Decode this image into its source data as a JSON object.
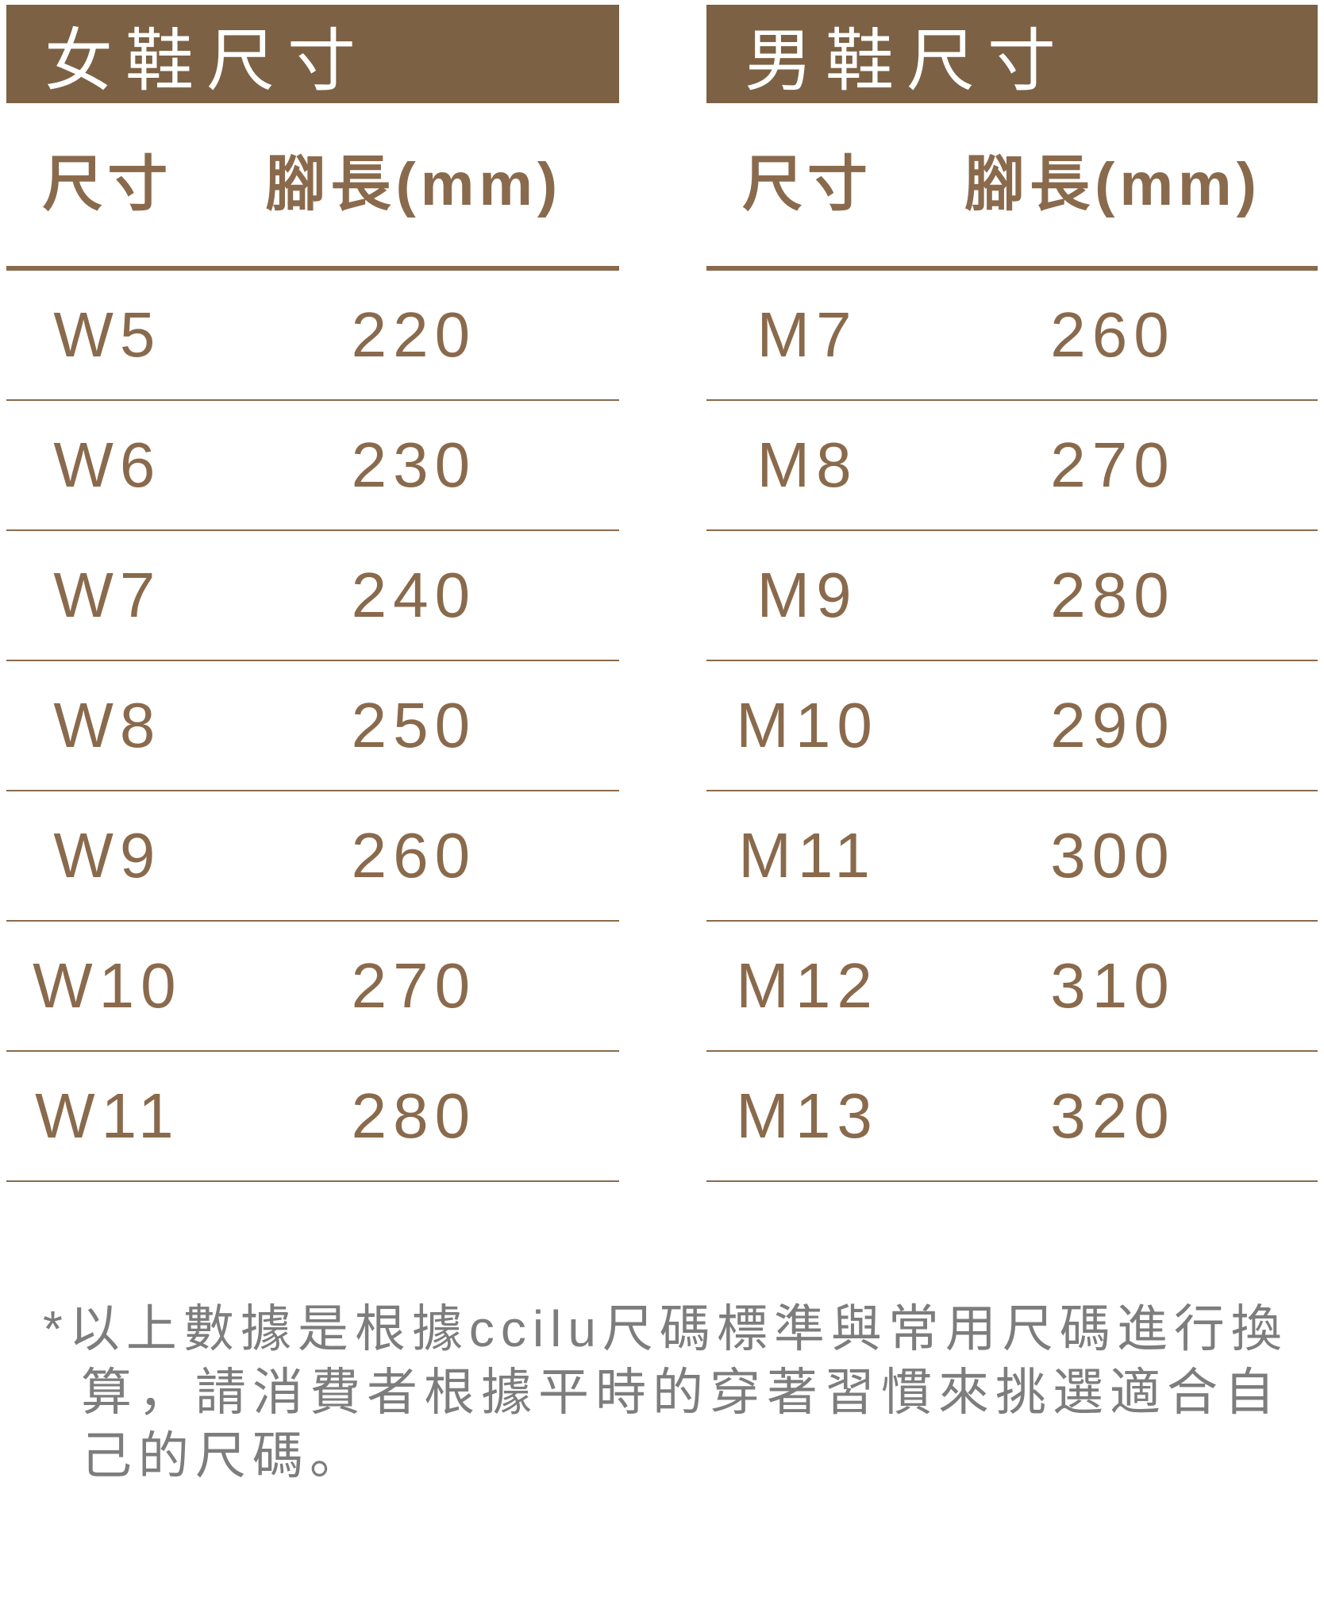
{
  "colors": {
    "band_bg": "#7C6144",
    "band_text": "#FFFFFF",
    "table_text": "#8A6A4C",
    "rule": "#8A6A4C",
    "note_text": "#7D7D7D"
  },
  "women_table": {
    "title": "女鞋尺寸",
    "col_size": "尺寸",
    "col_length": "腳長(mm)",
    "rows": [
      {
        "size": "W5",
        "length": "220"
      },
      {
        "size": "W6",
        "length": "230"
      },
      {
        "size": "W7",
        "length": "240"
      },
      {
        "size": "W8",
        "length": "250"
      },
      {
        "size": "W9",
        "length": "260"
      },
      {
        "size": "W10",
        "length": "270"
      },
      {
        "size": "W11",
        "length": "280"
      }
    ]
  },
  "men_table": {
    "title": "男鞋尺寸",
    "col_size": "尺寸",
    "col_length": "腳長(mm)",
    "rows": [
      {
        "size": "M7",
        "length": "260"
      },
      {
        "size": "M8",
        "length": "270"
      },
      {
        "size": "M9",
        "length": "280"
      },
      {
        "size": "M10",
        "length": "290"
      },
      {
        "size": "M11",
        "length": "300"
      },
      {
        "size": "M12",
        "length": "310"
      },
      {
        "size": "M13",
        "length": "320"
      }
    ]
  },
  "note": {
    "lines": [
      "*以上數據是根據ccilu尺碼標準與常用尺碼進行換",
      "算，請消費者根據平時的穿著習慣來挑選適合自",
      "己的尺碼。"
    ]
  }
}
